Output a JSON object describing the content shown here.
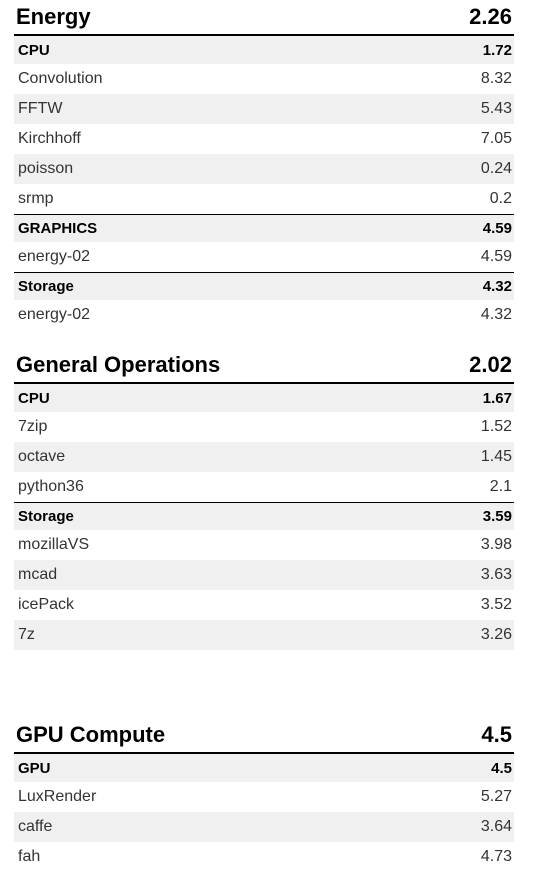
{
  "sections": [
    {
      "title": "Energy",
      "score": "2.26",
      "categories": [
        {
          "name": "CPU",
          "score": "1.72",
          "items": [
            {
              "name": "Convolution",
              "score": "8.32"
            },
            {
              "name": "FFTW",
              "score": "5.43"
            },
            {
              "name": "Kirchhoff",
              "score": "7.05"
            },
            {
              "name": "poisson",
              "score": "0.24"
            },
            {
              "name": "srmp",
              "score": "0.2"
            }
          ]
        },
        {
          "name": "GRAPHICS",
          "score": "4.59",
          "items": [
            {
              "name": "energy-02",
              "score": "4.59"
            }
          ]
        },
        {
          "name": "Storage",
          "score": "4.32",
          "items": [
            {
              "name": "energy-02",
              "score": "4.32"
            }
          ]
        }
      ]
    },
    {
      "title": "General Operations",
      "score": "2.02",
      "categories": [
        {
          "name": "CPU",
          "score": "1.67",
          "items": [
            {
              "name": "7zip",
              "score": "1.52"
            },
            {
              "name": "octave",
              "score": "1.45"
            },
            {
              "name": "python36",
              "score": "2.1"
            }
          ]
        },
        {
          "name": "Storage",
          "score": "3.59",
          "items": [
            {
              "name": "mozillaVS",
              "score": "3.98"
            },
            {
              "name": "mcad",
              "score": "3.63"
            },
            {
              "name": "icePack",
              "score": "3.52"
            },
            {
              "name": "7z",
              "score": "3.26"
            }
          ]
        }
      ]
    },
    {
      "title": "GPU Compute",
      "score": "4.5",
      "categories": [
        {
          "name": "GPU",
          "score": "4.5",
          "items": [
            {
              "name": "LuxRender",
              "score": "5.27"
            },
            {
              "name": "caffe",
              "score": "3.64"
            },
            {
              "name": "fah",
              "score": "4.73"
            }
          ]
        }
      ]
    }
  ]
}
